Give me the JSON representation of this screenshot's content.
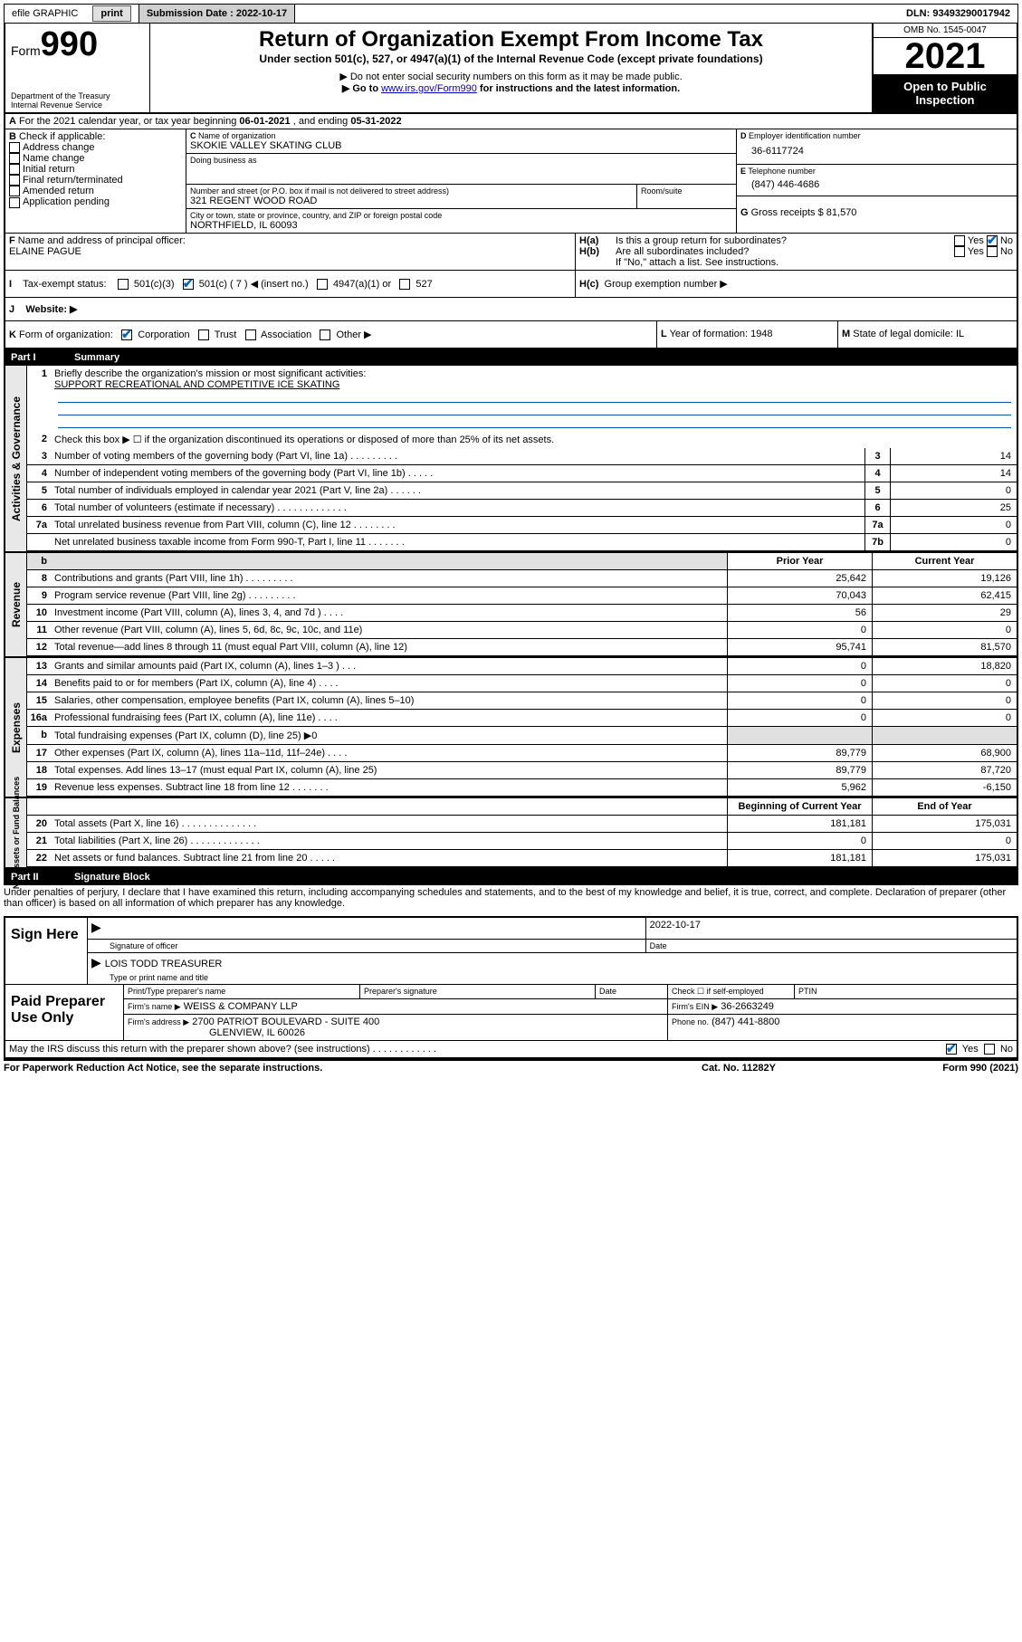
{
  "topbar": {
    "efile": "efile GRAPHIC",
    "print": "print",
    "sub_label": "Submission Date : 2022-10-17",
    "dln": "DLN: 93493290017942"
  },
  "header": {
    "form_prefix": "Form",
    "form_no": "990",
    "dept": "Department of the Treasury",
    "irs": "Internal Revenue Service",
    "title": "Return of Organization Exempt From Income Tax",
    "subtitle": "Under section 501(c), 527, or 4947(a)(1) of the Internal Revenue Code (except private foundations)",
    "note1": "▶ Do not enter social security numbers on this form as it may be made public.",
    "note2_pre": "▶ Go to ",
    "note2_link": "www.irs.gov/Form990",
    "note2_post": " for instructions and the latest information.",
    "omb": "OMB No. 1545-0047",
    "year": "2021",
    "open": "Open to Public Inspection"
  },
  "A": {
    "label_pre": "For the 2021 calendar year, or tax year beginning ",
    "begin": "06-01-2021",
    "mid": " , and ending ",
    "end": "05-31-2022"
  },
  "B": {
    "header": "Check if applicable:",
    "items": [
      "Address change",
      "Name change",
      "Initial return",
      "Final return/terminated",
      "Amended return",
      "Application pending"
    ]
  },
  "C": {
    "name_label": "Name of organization",
    "name": "SKOKIE VALLEY SKATING CLUB",
    "dba_label": "Doing business as",
    "dba": "",
    "street_label": "Number and street (or P.O. box if mail is not delivered to street address)",
    "room_label": "Room/suite",
    "street": "321 REGENT WOOD ROAD",
    "city_label": "City or town, state or province, country, and ZIP or foreign postal code",
    "city": "NORTHFIELD, IL  60093"
  },
  "D": {
    "label": "Employer identification number",
    "value": "36-6117724"
  },
  "E": {
    "label": "Telephone number",
    "value": "(847) 446-4686"
  },
  "G": {
    "label": "Gross receipts $",
    "value": "81,570"
  },
  "F": {
    "label": "Name and address of principal officer:",
    "value": "ELAINE PAGUE"
  },
  "H": {
    "a_label": "Is this a group return for subordinates?",
    "b_label": "Are all subordinates included?",
    "b_note": "If \"No,\" attach a list. See instructions.",
    "c_label": "Group exemption number ▶",
    "yes": "Yes",
    "no": "No"
  },
  "I": {
    "label": "Tax-exempt status:",
    "c501c3": "501(c)(3)",
    "c501c": "501(c) ( 7 ) ◀ (insert no.)",
    "c4947": "4947(a)(1) or",
    "c527": "527"
  },
  "J": {
    "label": "Website: ▶",
    "value": ""
  },
  "K": {
    "label": "Form of organization:",
    "corp": "Corporation",
    "trust": "Trust",
    "assoc": "Association",
    "other": "Other ▶"
  },
  "L": {
    "label": "Year of formation:",
    "value": "1948"
  },
  "M": {
    "label": "State of legal domicile:",
    "value": "IL"
  },
  "part1": {
    "num": "Part I",
    "title": "Summary"
  },
  "strips": {
    "gov": "Activities & Governance",
    "rev": "Revenue",
    "exp": "Expenses",
    "net": "Net Assets or\nFund Balances"
  },
  "s1": {
    "q1": "Briefly describe the organization's mission or most significant activities:",
    "a1": "SUPPORT RECREATIONAL AND COMPETITIVE ICE SKATING",
    "q2": "Check this box ▶ ☐  if the organization discontinued its operations or disposed of more than 25% of its net assets.",
    "lines": [
      {
        "n": "3",
        "d": "Number of voting members of the governing body (Part VI, line 1a)   .    .    .    .    .    .    .    .    .",
        "b": "3",
        "v": "14"
      },
      {
        "n": "4",
        "d": "Number of independent voting members of the governing body (Part VI, line 1b)   .    .    .    .    .",
        "b": "4",
        "v": "14"
      },
      {
        "n": "5",
        "d": "Total number of individuals employed in calendar year 2021 (Part V, line 2a)   .    .    .    .    .    .",
        "b": "5",
        "v": "0"
      },
      {
        "n": "6",
        "d": "Total number of volunteers (estimate if necessary)   .    .    .    .    .    .    .    .    .    .    .    .    .",
        "b": "6",
        "v": "25"
      },
      {
        "n": "7a",
        "d": "Total unrelated business revenue from Part VIII, column (C), line 12   .    .    .    .    .    .    .    .",
        "b": "7a",
        "v": "0"
      },
      {
        "n": "",
        "d": "Net unrelated business taxable income from Form 990-T, Part I, line 11   .    .    .    .    .    .    .",
        "b": "7b",
        "v": "0"
      }
    ]
  },
  "cols": {
    "prior": "Prior Year",
    "current": "Current Year",
    "boy": "Beginning of Current Year",
    "eoy": "End of Year"
  },
  "revenue": [
    {
      "n": "8",
      "d": "Contributions and grants (Part VIII, line 1h)   .    .    .    .    .    .    .    .    .",
      "p": "25,642",
      "c": "19,126"
    },
    {
      "n": "9",
      "d": "Program service revenue (Part VIII, line 2g)   .    .    .    .    .    .    .    .    .",
      "p": "70,043",
      "c": "62,415"
    },
    {
      "n": "10",
      "d": "Investment income (Part VIII, column (A), lines 3, 4, and 7d )   .    .    .    .",
      "p": "56",
      "c": "29"
    },
    {
      "n": "11",
      "d": "Other revenue (Part VIII, column (A), lines 5, 6d, 8c, 9c, 10c, and 11e)",
      "p": "0",
      "c": "0"
    },
    {
      "n": "12",
      "d": "Total revenue—add lines 8 through 11 (must equal Part VIII, column (A), line 12)",
      "p": "95,741",
      "c": "81,570"
    }
  ],
  "expenses": [
    {
      "n": "13",
      "d": "Grants and similar amounts paid (Part IX, column (A), lines 1–3 )   .    .    .",
      "p": "0",
      "c": "18,820"
    },
    {
      "n": "14",
      "d": "Benefits paid to or for members (Part IX, column (A), line 4)   .    .    .    .",
      "p": "0",
      "c": "0"
    },
    {
      "n": "15",
      "d": "Salaries, other compensation, employee benefits (Part IX, column (A), lines 5–10)",
      "p": "0",
      "c": "0"
    },
    {
      "n": "16a",
      "d": "Professional fundraising fees (Part IX, column (A), line 11e)   .    .    .    .",
      "p": "0",
      "c": "0"
    },
    {
      "n": "b",
      "d": "Total fundraising expenses (Part IX, column (D), line 25) ▶0",
      "p": "",
      "c": "",
      "grey": true
    },
    {
      "n": "17",
      "d": "Other expenses (Part IX, column (A), lines 11a–11d, 11f–24e)   .    .    .    .",
      "p": "89,779",
      "c": "68,900"
    },
    {
      "n": "18",
      "d": "Total expenses. Add lines 13–17 (must equal Part IX, column (A), line 25)",
      "p": "89,779",
      "c": "87,720"
    },
    {
      "n": "19",
      "d": "Revenue less expenses. Subtract line 18 from line 12   .    .    .    .    .    .    .",
      "p": "5,962",
      "c": "-6,150"
    }
  ],
  "netassets": [
    {
      "n": "20",
      "d": "Total assets (Part X, line 16)   .    .    .    .    .    .    .    .    .    .    .    .    .    .",
      "p": "181,181",
      "c": "175,031"
    },
    {
      "n": "21",
      "d": "Total liabilities (Part X, line 26)   .    .    .    .    .    .    .    .    .    .    .    .    .",
      "p": "0",
      "c": "0"
    },
    {
      "n": "22",
      "d": "Net assets or fund balances. Subtract line 21 from line 20   .    .    .    .    .",
      "p": "181,181",
      "c": "175,031"
    }
  ],
  "part2": {
    "num": "Part II",
    "title": "Signature Block"
  },
  "declaration": "Under penalties of perjury, I declare that I have examined this return, including accompanying schedules and statements, and to the best of my knowledge and belief, it is true, correct, and complete. Declaration of preparer (other than officer) is based on all information of which preparer has any knowledge.",
  "sign": {
    "here": "Sign Here",
    "sig_officer": "Signature of officer",
    "date_label": "Date",
    "date": "2022-10-17",
    "name_title": "LOIS TODD  TREASURER",
    "type_label": "Type or print name and title"
  },
  "paid": {
    "title": "Paid Preparer Use Only",
    "pt_name": "Print/Type preparer's name",
    "prep_sig": "Preparer's signature",
    "date": "Date",
    "check_self": "Check ☐ if self-employed",
    "ptin": "PTIN",
    "firm_name_label": "Firm's name      ▶",
    "firm_name": "WEISS & COMPANY LLP",
    "firm_ein_label": "Firm's EIN ▶",
    "firm_ein": "36-2663249",
    "firm_addr_label": "Firm's address ▶",
    "firm_addr1": "2700 PATRIOT BOULEVARD - SUITE 400",
    "firm_addr2": "GLENVIEW, IL  60026",
    "phone_label": "Phone no.",
    "phone": "(847) 441-8800"
  },
  "discuss": {
    "q": "May the IRS discuss this return with the preparer shown above? (see instructions)   .    .    .    .    .    .    .    .    .    .    .    .",
    "yes": "Yes",
    "no": "No"
  },
  "footer": {
    "pra": "For Paperwork Reduction Act Notice, see the separate instructions.",
    "cat": "Cat. No. 11282Y",
    "form": "Form 990 (2021)"
  }
}
